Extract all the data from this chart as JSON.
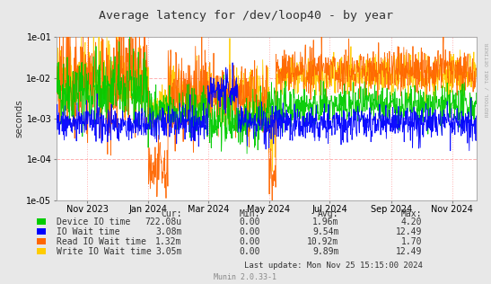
{
  "title": "Average latency for /dev/loop40 - by year",
  "ylabel": "seconds",
  "right_label": "RRDTOOL / TOBI OETIKER",
  "footer": "Munin 2.0.33-1",
  "last_update": "Last update: Mon Nov 25 15:15:00 2024",
  "bg_color": "#e8e8e8",
  "plot_bg_color": "#ffffff",
  "xmin": 1696118400,
  "xmax": 1732492800,
  "ymin": 1e-05,
  "ymax": 0.1,
  "x_ticks_labels": [
    "Nov 2023",
    "Jan 2024",
    "Mar 2024",
    "May 2024",
    "Jul 2024",
    "Sep 2024",
    "Nov 2024"
  ],
  "x_ticks_pos": [
    1698796800,
    1704067200,
    1709251200,
    1714521600,
    1719792000,
    1725148800,
    1730419200
  ],
  "series": [
    {
      "name": "Device IO time",
      "color": "#00cc00"
    },
    {
      "name": "IO Wait time",
      "color": "#0000ff"
    },
    {
      "name": "Read IO Wait time",
      "color": "#ff6600"
    },
    {
      "name": "Write IO Wait time",
      "color": "#ffcc00"
    }
  ],
  "legend": [
    {
      "label": "Device IO time",
      "color": "#00cc00",
      "cur": "722.08u",
      "min": "0.00",
      "avg": "1.96m",
      "max": "4.20"
    },
    {
      "label": "IO Wait time",
      "color": "#0000ff",
      "cur": "3.08m",
      "min": "0.00",
      "avg": "9.54m",
      "max": "12.49"
    },
    {
      "label": "Read IO Wait time",
      "color": "#ff6600",
      "cur": "1.32m",
      "min": "0.00",
      "avg": "10.92m",
      "max": "1.70"
    },
    {
      "label": "Write IO Wait time",
      "color": "#ffcc00",
      "cur": "3.05m",
      "min": "0.00",
      "avg": "9.89m",
      "max": "12.49"
    }
  ],
  "legend_headers": [
    "",
    "Cur:",
    "Min:",
    "Avg:",
    "Max:"
  ]
}
